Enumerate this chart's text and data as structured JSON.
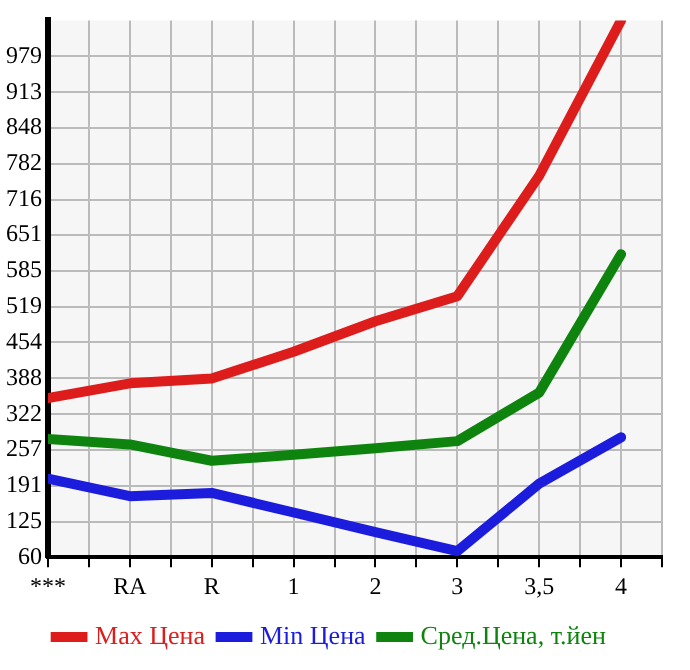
{
  "chart_data": {
    "type": "line",
    "categories": [
      "***",
      "RA",
      "R",
      "1",
      "2",
      "3",
      "3,5",
      "4"
    ],
    "series": [
      {
        "name": "Max Цена",
        "color": "#dd1c1c",
        "values": [
          352,
          379,
          388,
          437,
          493,
          539,
          760,
          1045
        ]
      },
      {
        "name": "Min Цена",
        "color": "#1c1cdd",
        "values": [
          204,
          172,
          178,
          142,
          106,
          71,
          195,
          280
        ]
      },
      {
        "name": "Сред.Цена, т.йен",
        "color": "#0e840e",
        "values": [
          277,
          267,
          237,
          248,
          260,
          273,
          362,
          616
        ]
      }
    ],
    "ylim": [
      60,
      1045
    ],
    "yticks": [
      60,
      125,
      191,
      257,
      322,
      388,
      454,
      519,
      585,
      651,
      716,
      782,
      848,
      913,
      979
    ],
    "grid": true,
    "legend": "bottom",
    "marker": "none",
    "line_style": "solid"
  }
}
